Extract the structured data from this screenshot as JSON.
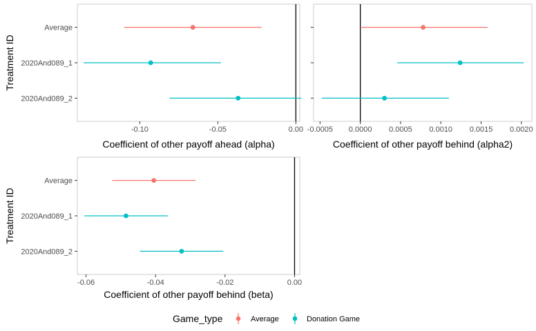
{
  "chart_data": [
    {
      "type": "errorbar-point",
      "xlabel": "Coefficient of other payoff ahead (alpha)",
      "ylabel": "Treatment ID",
      "xlim": [
        -0.14,
        0.0025
      ],
      "xticks": [
        -0.1,
        -0.05,
        0.0
      ],
      "xtick_labels": [
        "-0.10",
        "-0.05",
        "0.00"
      ],
      "reference_line_x": 0,
      "categories": [
        "Average",
        "2020And089_1",
        "2020And089_2"
      ],
      "points": [
        {
          "category": "Average",
          "group": "Average",
          "estimate": -0.066,
          "lower": -0.11,
          "upper": -0.022
        },
        {
          "category": "2020And089_1",
          "group": "Donation Game",
          "estimate": -0.093,
          "lower": -0.136,
          "upper": -0.048
        },
        {
          "category": "2020And089_2",
          "group": "Donation Game",
          "estimate": -0.037,
          "lower": -0.081,
          "upper": 0.0035
        }
      ]
    },
    {
      "type": "errorbar-point",
      "xlabel": "Coefficient of other payoff behind (alpha2)",
      "ylabel": "",
      "xlim": [
        -0.00058,
        0.00213
      ],
      "xticks": [
        -0.0005,
        0.0,
        0.0005,
        0.001,
        0.0015,
        0.002
      ],
      "xtick_labels": [
        "-0.0005",
        "0.0000",
        "0.0005",
        "0.0010",
        "0.0015",
        "0.0020"
      ],
      "reference_line_x": 0,
      "categories": [
        "Average",
        "2020And089_1",
        "2020And089_2"
      ],
      "points": [
        {
          "category": "Average",
          "group": "Average",
          "estimate": 0.00078,
          "lower": 0.0,
          "upper": 0.00158
        },
        {
          "category": "2020And089_1",
          "group": "Donation Game",
          "estimate": 0.00124,
          "lower": 0.00046,
          "upper": 0.00203
        },
        {
          "category": "2020And089_2",
          "group": "Donation Game",
          "estimate": 0.0003,
          "lower": -0.00048,
          "upper": 0.0011
        }
      ]
    },
    {
      "type": "errorbar-point",
      "xlabel": "Coefficient of other payoff behind (beta)",
      "ylabel": "Treatment ID",
      "xlim": [
        -0.0625,
        0.0015
      ],
      "xticks": [
        -0.06,
        -0.04,
        -0.02,
        0.0
      ],
      "xtick_labels": [
        "-0.06",
        "-0.04",
        "-0.02",
        "0.00"
      ],
      "reference_line_x": 0,
      "categories": [
        "Average",
        "2020And089_1",
        "2020And089_2"
      ],
      "points": [
        {
          "category": "Average",
          "group": "Average",
          "estimate": -0.0405,
          "lower": -0.0525,
          "upper": -0.0285
        },
        {
          "category": "2020And089_1",
          "group": "Donation Game",
          "estimate": -0.0485,
          "lower": -0.0605,
          "upper": -0.0365
        },
        {
          "category": "2020And089_2",
          "group": "Donation Game",
          "estimate": -0.0325,
          "lower": -0.0445,
          "upper": -0.0205
        }
      ]
    }
  ],
  "legend": {
    "title": "Game_type",
    "placement": "bottom",
    "entries": [
      {
        "label": "Average",
        "color": "#F8766D"
      },
      {
        "label": "Donation Game",
        "color": "#00BFC4"
      }
    ]
  },
  "colors": {
    "Average": "#F8766D",
    "Donation Game": "#00BFC4",
    "panel_border": "#cccccc",
    "reference_line": "#000000"
  }
}
